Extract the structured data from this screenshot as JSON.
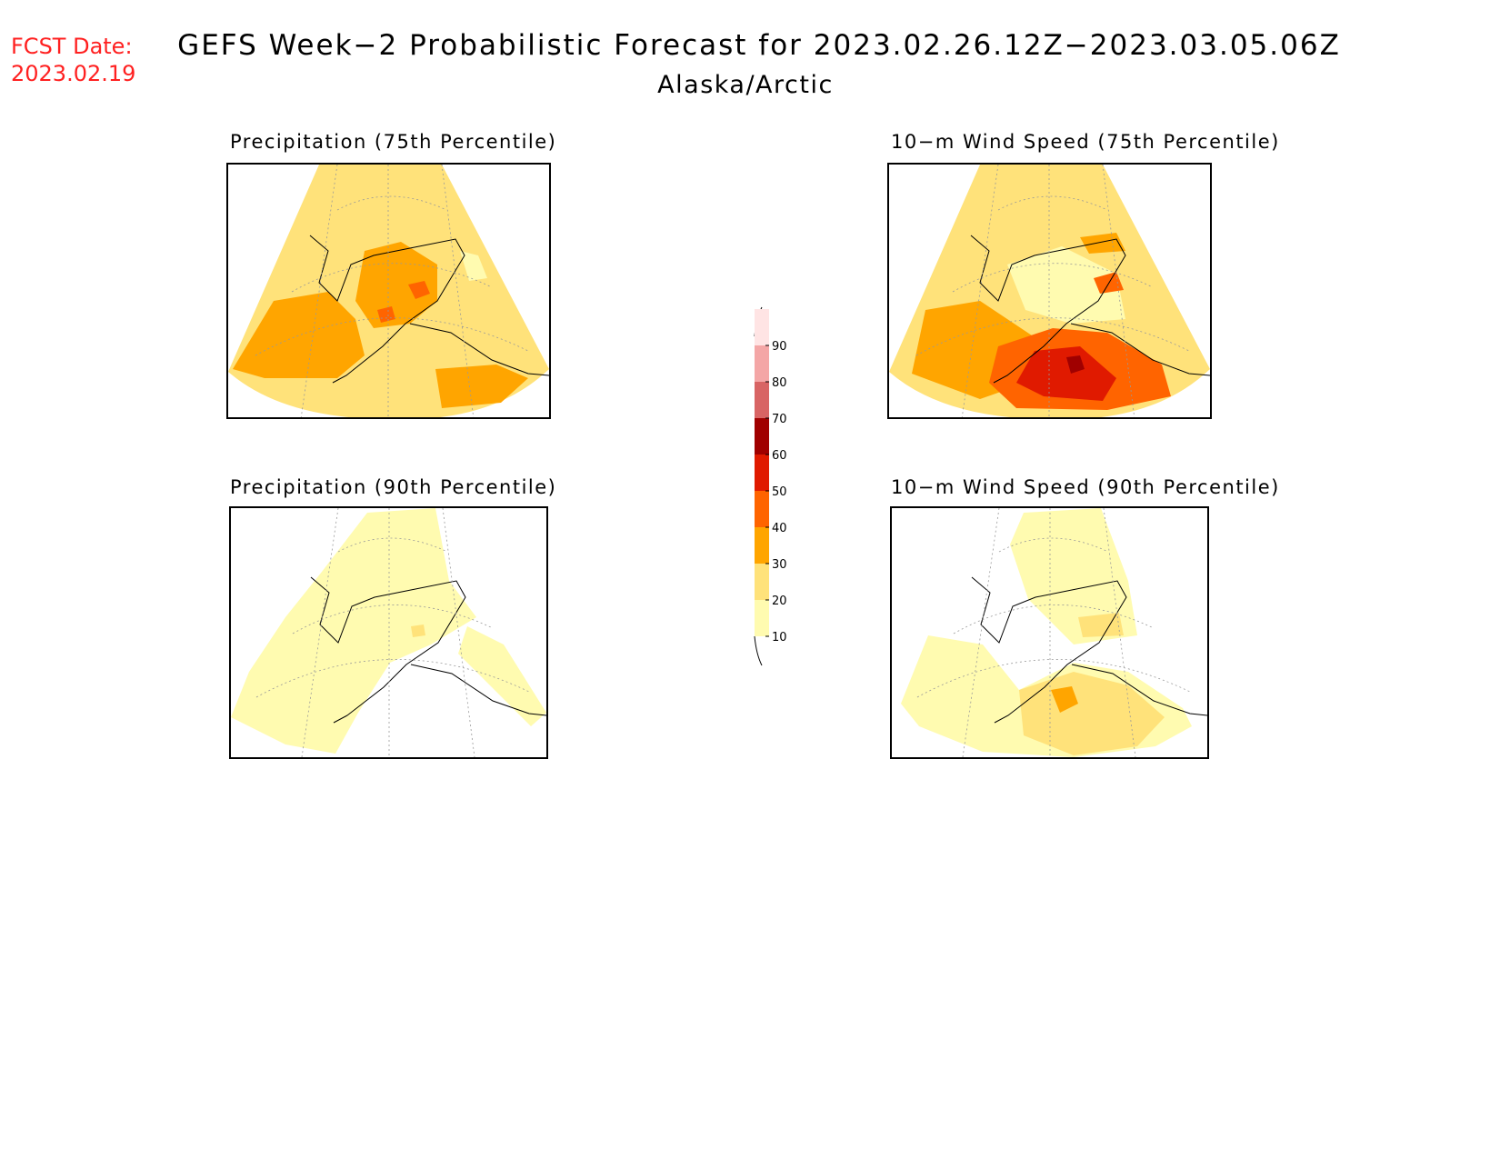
{
  "header": {
    "fcst_label": "FCST Date:",
    "fcst_date": "2023.02.19",
    "title": "GEFS Week−2 Probabilistic Forecast for 2023.02.26.12Z−2023.03.05.06Z",
    "region": "Alaska/Arctic"
  },
  "panels": [
    {
      "id": "precip75",
      "title": "Precipitation (75th Percentile)",
      "dominant_level": 20
    },
    {
      "id": "wind75",
      "title": "10−m Wind Speed (75th Percentile)",
      "dominant_level": 20
    },
    {
      "id": "precip90",
      "title": "Precipitation (90th Percentile)",
      "dominant_level": 10
    },
    {
      "id": "wind90",
      "title": "10−m Wind Speed (90th Percentile)",
      "dominant_level": 10
    }
  ],
  "colorbar": {
    "levels": [
      {
        "value": "10",
        "color": "#fffbb0"
      },
      {
        "value": "20",
        "color": "#ffe27a"
      },
      {
        "value": "30",
        "color": "#ffa500"
      },
      {
        "value": "40",
        "color": "#ff6400"
      },
      {
        "value": "50",
        "color": "#e01a00"
      },
      {
        "value": "60",
        "color": "#a00000"
      },
      {
        "value": "70",
        "color": "#d86464"
      },
      {
        "value": "80",
        "color": "#f4a6a6"
      },
      {
        "value": "90",
        "color": "#ffe4e4"
      }
    ]
  }
}
